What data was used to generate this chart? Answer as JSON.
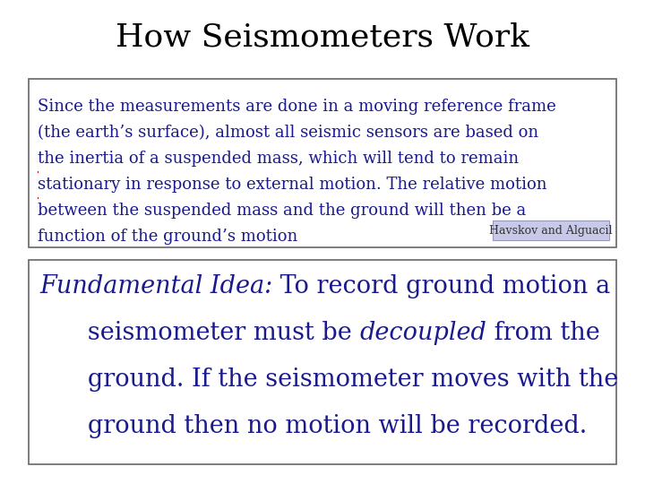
{
  "title": "How Seismometers Work",
  "title_fontsize": 26,
  "title_color": "#000000",
  "title_font": "serif",
  "bg_color": "#ffffff",
  "box1": {
    "lines": [
      "Since the measurements are done in a moving reference frame",
      "(the earth’s surface), almost all seismic sensors are based on",
      "the inertia of a suspended mass, which will tend to remain",
      "stationary in response to external motion. The relative motion",
      "between the suspended mass and the ground will then be a",
      "function of the ground’s motion"
    ],
    "underline_line1_prefix": "(the earth’s surface), ",
    "underline_line1_full": "(the earth’s surface), almost all seismic sensors are based on",
    "underline_line2_full": "the inertia of a suspended mass, which will tend to remain",
    "underline_line3_part": "stationary in response to external motion.",
    "citation": "Havskov and Alguacil",
    "citation_bg": "#c8c8e8",
    "border_color": "#666666",
    "bg": "#ffffff",
    "font_color": "#1a1a8c",
    "fontsize": 13
  },
  "box2": {
    "line1_italic": "Fundamental Idea:",
    "line1_rest": " To record ground motion a",
    "line2_indent": "   seismometer must be ",
    "line2_italic": "decoupled",
    "line2_rest": " from the",
    "line3": "   ground. If the seismometer moves with the",
    "line4": "   ground then no motion will be recorded.",
    "font_color": "#1a1a8c",
    "border_color": "#666666",
    "bg": "#ffffff",
    "fontsize": 19.5
  }
}
